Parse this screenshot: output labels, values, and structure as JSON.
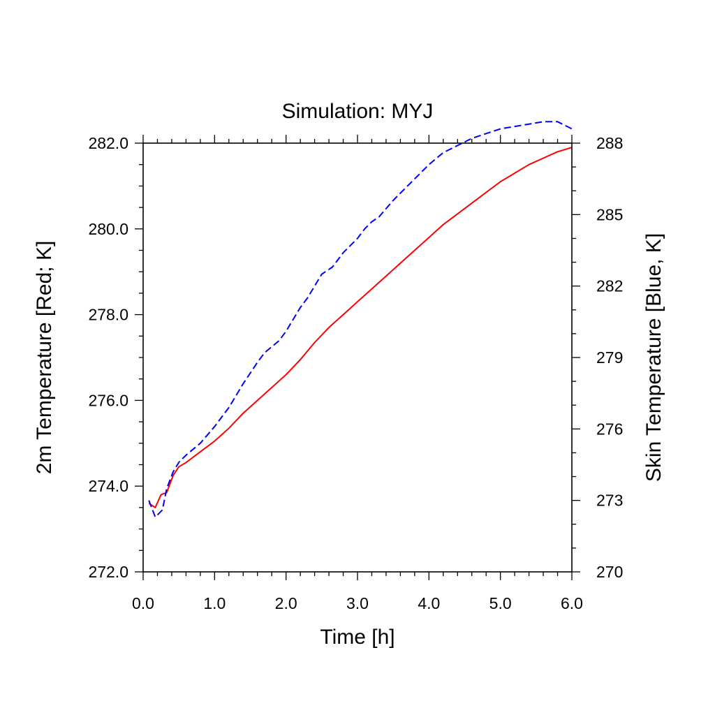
{
  "chart_data": {
    "type": "line",
    "title": "Simulation: MYJ",
    "xlabel": "Time [h]",
    "ylabel_left": "2m Temperature [Red; K]",
    "ylabel_right": "Skin Temperature [Blue, K]",
    "xlim": [
      0.0,
      6.0
    ],
    "ylim_left": [
      272.0,
      282.0
    ],
    "ylim_right": [
      270,
      288
    ],
    "x_ticks": [
      "0.0",
      "1.0",
      "2.0",
      "3.0",
      "4.0",
      "5.0",
      "6.0"
    ],
    "y_left_ticks": [
      "272.0",
      "274.0",
      "276.0",
      "278.0",
      "280.0",
      "282.0"
    ],
    "y_right_ticks": [
      "270",
      "273",
      "276",
      "279",
      "282",
      "285",
      "288"
    ],
    "grid": false,
    "series": [
      {
        "axis": "left",
        "color": "#ff0000",
        "dash": "solid",
        "x": [
          0.08,
          0.17,
          0.25,
          0.33,
          0.42,
          0.5,
          0.6,
          0.8,
          1.0,
          1.2,
          1.4,
          1.6,
          1.8,
          2.0,
          2.2,
          2.4,
          2.6,
          2.8,
          3.0,
          3.2,
          3.4,
          3.6,
          3.8,
          4.0,
          4.2,
          4.4,
          4.6,
          4.8,
          5.0,
          5.2,
          5.4,
          5.6,
          5.8,
          6.0
        ],
        "values": [
          273.6,
          273.5,
          273.8,
          273.85,
          274.25,
          274.45,
          274.55,
          274.8,
          275.05,
          275.35,
          275.7,
          276.0,
          276.3,
          276.6,
          276.95,
          277.35,
          277.7,
          278.0,
          278.3,
          278.6,
          278.9,
          279.2,
          279.5,
          279.8,
          280.1,
          280.35,
          280.6,
          280.85,
          281.1,
          281.3,
          281.5,
          281.65,
          281.8,
          281.9
        ]
      },
      {
        "axis": "right",
        "color": "#0000ff",
        "dash": "dashed",
        "x": [
          0.08,
          0.17,
          0.27,
          0.33,
          0.42,
          0.5,
          0.6,
          0.8,
          1.0,
          1.2,
          1.4,
          1.6,
          1.7,
          1.9,
          2.0,
          2.1,
          2.2,
          2.3,
          2.5,
          2.65,
          2.8,
          2.9,
          3.0,
          3.1,
          3.2,
          3.3,
          3.5,
          3.6,
          3.8,
          4.0,
          4.2,
          4.4,
          4.6,
          4.8,
          5.0,
          5.2,
          5.4,
          5.6,
          5.8,
          6.0
        ],
        "values": [
          273.0,
          272.3,
          272.6,
          273.5,
          274.2,
          274.6,
          274.9,
          275.4,
          276.1,
          276.9,
          277.9,
          278.8,
          279.2,
          279.7,
          280.1,
          280.6,
          281.1,
          281.5,
          282.5,
          282.8,
          283.4,
          283.7,
          284.0,
          284.4,
          284.7,
          284.9,
          285.6,
          285.9,
          286.5,
          287.1,
          287.6,
          287.9,
          288.2,
          288.4,
          288.6,
          288.7,
          288.8,
          288.9,
          288.9,
          288.6
        ]
      }
    ]
  }
}
